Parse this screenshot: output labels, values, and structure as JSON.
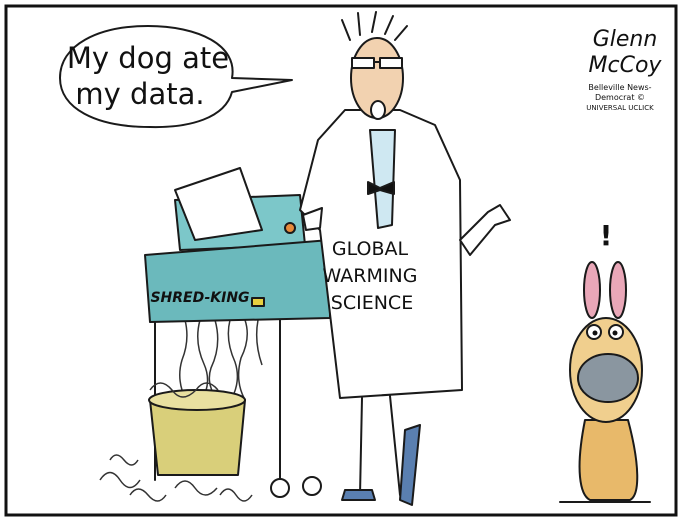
{
  "speech_bubble": {
    "lines": [
      "My dog ate",
      "my data."
    ]
  },
  "shredder": {
    "brand": "SHRED-KING"
  },
  "lab_coat": {
    "lines": [
      "GLOBAL",
      "WARMING",
      "SCIENCE"
    ]
  },
  "dog": {
    "exclamation": "!"
  },
  "signature": {
    "lines": [
      "Glenn",
      "McCoy",
      "Belleville News-",
      "Democrat ©",
      "UNIVERSAL UCLICK"
    ]
  }
}
